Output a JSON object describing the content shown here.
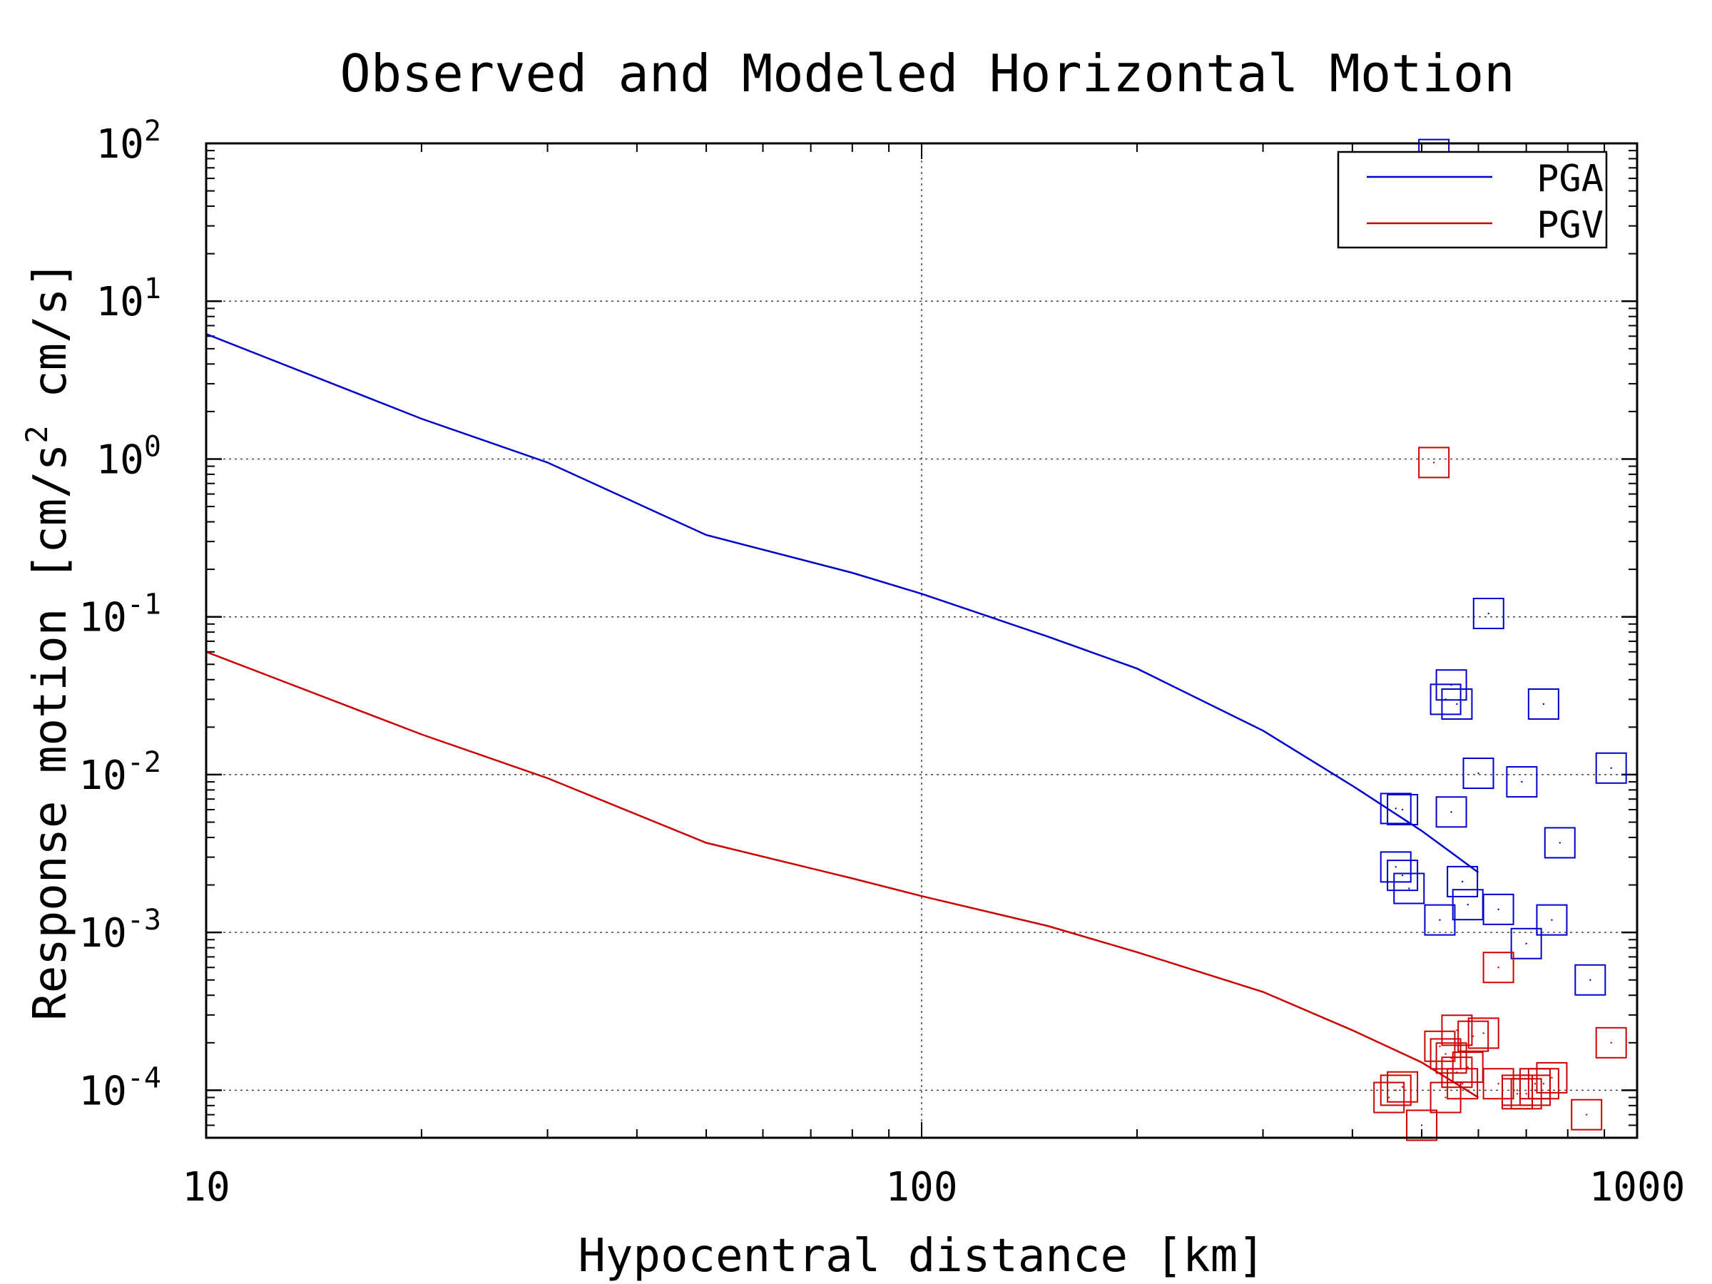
{
  "chart_data": {
    "type": "line",
    "title": "Observed and Modeled Horizontal Motion",
    "xlabel": "Hypocentral distance [km]",
    "ylabel": {
      "prefix": "Response motion  [cm/s",
      "exponent": "2",
      "suffix": "  cm/s]"
    },
    "x_scale": "log",
    "y_scale": "log",
    "xlim": [
      10,
      1000
    ],
    "ylim": [
      5e-05,
      100
    ],
    "grid": true,
    "legend_position": "top-right",
    "x_ticks": [
      {
        "value": 10,
        "label": "10"
      },
      {
        "value": 100,
        "label": "100"
      },
      {
        "value": 1000,
        "label": "1000"
      }
    ],
    "y_ticks": [
      {
        "value": 100,
        "base": "10",
        "exp": "2"
      },
      {
        "value": 10,
        "base": "10",
        "exp": "1"
      },
      {
        "value": 1,
        "base": "10",
        "exp": "0"
      },
      {
        "value": 0.1,
        "base": "10",
        "exp": "-1"
      },
      {
        "value": 0.01,
        "base": "10",
        "exp": "-2"
      },
      {
        "value": 0.001,
        "base": "10",
        "exp": "-3"
      },
      {
        "value": 0.0001,
        "base": "10",
        "exp": "-4"
      }
    ],
    "series": [
      {
        "name": "PGA",
        "color": "#0000cc",
        "line": {
          "x": [
            10,
            20,
            30,
            50,
            80,
            100,
            150,
            200,
            300,
            400,
            500,
            600
          ],
          "y": [
            6.2,
            1.8,
            0.95,
            0.33,
            0.19,
            0.14,
            0.075,
            0.047,
            0.019,
            0.0085,
            0.0044,
            0.0024
          ]
        },
        "points": {
          "x": [
            520,
            620,
            460,
            540,
            560,
            550,
            740,
            600,
            690,
            920,
            470,
            550,
            780,
            460,
            470,
            480,
            570,
            580,
            640,
            530,
            760,
            700,
            860
          ],
          "y": [
            85,
            0.105,
            0.0061,
            0.03,
            0.028,
            0.037,
            0.028,
            0.0102,
            0.009,
            0.011,
            0.006,
            0.0058,
            0.0037,
            0.0026,
            0.0023,
            0.0019,
            0.0021,
            0.0015,
            0.0014,
            0.0012,
            0.0012,
            0.00085,
            0.0005
          ]
        }
      },
      {
        "name": "PGV",
        "color": "#cc0000",
        "line": {
          "x": [
            10,
            20,
            30,
            50,
            80,
            100,
            150,
            200,
            300,
            400,
            500,
            600
          ],
          "y": [
            0.06,
            0.018,
            0.0095,
            0.0037,
            0.0022,
            0.0017,
            0.0011,
            0.00075,
            0.00042,
            0.00024,
            0.00015,
            9e-05
          ]
        },
        "points": {
          "x": [
            520,
            640,
            560,
            590,
            610,
            530,
            540,
            550,
            560,
            580,
            570,
            640,
            680,
            720,
            740,
            760,
            920,
            470,
            460,
            450,
            500,
            540,
            700,
            720,
            850,
            680
          ],
          "y": [
            0.95,
            0.0006,
            0.00024,
            0.00022,
            0.00023,
            0.00019,
            0.00017,
            0.00016,
            0.00013,
            0.00014,
            0.00011,
            0.00011,
            0.0001,
            0.00011,
            0.00011,
            0.00012,
            0.0002,
            0.000105,
            0.0001,
            9e-05,
            6e-05,
            9e-05,
            9.5e-05,
            0.0001,
            7e-05,
            9.5e-05
          ]
        }
      }
    ]
  }
}
